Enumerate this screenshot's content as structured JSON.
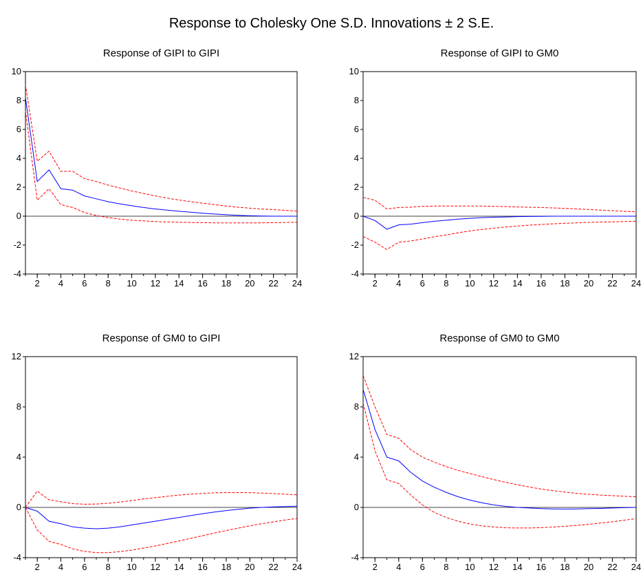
{
  "title": "Response to Cholesky One S.D. Innovations ± 2 S.E.",
  "colors": {
    "response": "#0000ff",
    "band": "#ff0000",
    "axis": "#000000",
    "zero_line": "#000000"
  },
  "chart_data": [
    {
      "type": "line",
      "title": "Response of GIPI to GIPI",
      "x": [
        1,
        2,
        3,
        4,
        5,
        6,
        7,
        8,
        9,
        10,
        11,
        12,
        13,
        14,
        15,
        16,
        17,
        18,
        19,
        20,
        21,
        22,
        23,
        24
      ],
      "xticks": [
        2,
        4,
        6,
        8,
        10,
        12,
        14,
        16,
        18,
        20,
        22,
        24
      ],
      "xlim": [
        1,
        24
      ],
      "yticks": [
        -4,
        -2,
        0,
        2,
        4,
        6,
        8,
        10
      ],
      "ylim": [
        -4,
        10
      ],
      "grid": false,
      "series": [
        {
          "role": "response",
          "values": [
            8.2,
            2.4,
            3.2,
            1.9,
            1.8,
            1.4,
            1.2,
            1.0,
            0.85,
            0.72,
            0.6,
            0.5,
            0.42,
            0.34,
            0.27,
            0.21,
            0.15,
            0.1,
            0.06,
            0.03,
            0.01,
            0.0,
            0.0,
            0.0
          ]
        },
        {
          "role": "upper",
          "values": [
            9.1,
            3.8,
            4.5,
            3.1,
            3.1,
            2.6,
            2.4,
            2.15,
            1.95,
            1.75,
            1.57,
            1.4,
            1.25,
            1.12,
            1.0,
            0.9,
            0.8,
            0.7,
            0.62,
            0.55,
            0.5,
            0.45,
            0.4,
            0.35
          ]
        },
        {
          "role": "lower",
          "values": [
            7.3,
            1.1,
            1.9,
            0.8,
            0.6,
            0.25,
            0.05,
            -0.1,
            -0.2,
            -0.28,
            -0.33,
            -0.37,
            -0.4,
            -0.42,
            -0.44,
            -0.45,
            -0.46,
            -0.46,
            -0.46,
            -0.46,
            -0.46,
            -0.45,
            -0.44,
            -0.42
          ]
        }
      ]
    },
    {
      "type": "line",
      "title": "Response of GIPI to GM0",
      "x": [
        1,
        2,
        3,
        4,
        5,
        6,
        7,
        8,
        9,
        10,
        11,
        12,
        13,
        14,
        15,
        16,
        17,
        18,
        19,
        20,
        21,
        22,
        23,
        24
      ],
      "xticks": [
        2,
        4,
        6,
        8,
        10,
        12,
        14,
        16,
        18,
        20,
        22,
        24
      ],
      "xlim": [
        1,
        24
      ],
      "yticks": [
        -4,
        -2,
        0,
        2,
        4,
        6,
        8,
        10
      ],
      "ylim": [
        -4,
        10
      ],
      "grid": false,
      "series": [
        {
          "role": "response",
          "values": [
            0.0,
            -0.3,
            -0.9,
            -0.6,
            -0.55,
            -0.45,
            -0.35,
            -0.28,
            -0.2,
            -0.15,
            -0.1,
            -0.07,
            -0.05,
            -0.03,
            -0.02,
            -0.01,
            0.0,
            0.0,
            0.0,
            0.0,
            0.0,
            0.0,
            0.0,
            0.0
          ]
        },
        {
          "role": "upper",
          "values": [
            1.3,
            1.1,
            0.5,
            0.6,
            0.62,
            0.68,
            0.7,
            0.7,
            0.7,
            0.7,
            0.7,
            0.68,
            0.66,
            0.64,
            0.62,
            0.6,
            0.57,
            0.54,
            0.5,
            0.46,
            0.42,
            0.38,
            0.34,
            0.3
          ]
        },
        {
          "role": "lower",
          "values": [
            -1.4,
            -1.8,
            -2.3,
            -1.8,
            -1.72,
            -1.58,
            -1.42,
            -1.3,
            -1.15,
            -1.02,
            -0.92,
            -0.83,
            -0.75,
            -0.68,
            -0.62,
            -0.57,
            -0.53,
            -0.49,
            -0.46,
            -0.43,
            -0.41,
            -0.39,
            -0.37,
            -0.35
          ]
        }
      ]
    },
    {
      "type": "line",
      "title": "Response of GM0 to GIPI",
      "x": [
        1,
        2,
        3,
        4,
        5,
        6,
        7,
        8,
        9,
        10,
        11,
        12,
        13,
        14,
        15,
        16,
        17,
        18,
        19,
        20,
        21,
        22,
        23,
        24
      ],
      "xticks": [
        2,
        4,
        6,
        8,
        10,
        12,
        14,
        16,
        18,
        20,
        22,
        24
      ],
      "xlim": [
        1,
        24
      ],
      "yticks": [
        -4,
        0,
        4,
        8,
        12
      ],
      "ylim": [
        -4,
        12
      ],
      "grid": false,
      "series": [
        {
          "role": "response",
          "values": [
            0.0,
            -0.3,
            -1.1,
            -1.3,
            -1.55,
            -1.65,
            -1.7,
            -1.65,
            -1.55,
            -1.4,
            -1.25,
            -1.1,
            -0.95,
            -0.8,
            -0.65,
            -0.5,
            -0.37,
            -0.25,
            -0.15,
            -0.06,
            0.0,
            0.04,
            0.07,
            0.1
          ]
        },
        {
          "role": "upper",
          "values": [
            0.0,
            1.3,
            0.6,
            0.45,
            0.3,
            0.25,
            0.27,
            0.33,
            0.43,
            0.55,
            0.67,
            0.78,
            0.88,
            0.98,
            1.05,
            1.12,
            1.16,
            1.18,
            1.18,
            1.17,
            1.14,
            1.1,
            1.05,
            1.0
          ]
        },
        {
          "role": "lower",
          "values": [
            0.0,
            -1.8,
            -2.7,
            -2.95,
            -3.3,
            -3.5,
            -3.6,
            -3.6,
            -3.52,
            -3.4,
            -3.24,
            -3.07,
            -2.87,
            -2.67,
            -2.46,
            -2.25,
            -2.04,
            -1.84,
            -1.65,
            -1.47,
            -1.3,
            -1.15,
            -1.0,
            -0.88
          ]
        }
      ]
    },
    {
      "type": "line",
      "title": "Response of GM0 to GM0",
      "x": [
        1,
        2,
        3,
        4,
        5,
        6,
        7,
        8,
        9,
        10,
        11,
        12,
        13,
        14,
        15,
        16,
        17,
        18,
        19,
        20,
        21,
        22,
        23,
        24
      ],
      "xticks": [
        2,
        4,
        6,
        8,
        10,
        12,
        14,
        16,
        18,
        20,
        22,
        24
      ],
      "xlim": [
        1,
        24
      ],
      "yticks": [
        -4,
        0,
        4,
        8,
        12
      ],
      "ylim": [
        -4,
        12
      ],
      "grid": false,
      "series": [
        {
          "role": "response",
          "values": [
            9.4,
            6.2,
            4.0,
            3.7,
            2.8,
            2.1,
            1.6,
            1.2,
            0.85,
            0.58,
            0.37,
            0.2,
            0.08,
            0.0,
            -0.05,
            -0.1,
            -0.12,
            -0.13,
            -0.12,
            -0.1,
            -0.08,
            -0.05,
            -0.02,
            0.0
          ]
        },
        {
          "role": "upper",
          "values": [
            10.5,
            8.0,
            5.8,
            5.5,
            4.6,
            4.0,
            3.6,
            3.25,
            2.95,
            2.7,
            2.45,
            2.22,
            2.0,
            1.8,
            1.62,
            1.46,
            1.33,
            1.22,
            1.12,
            1.04,
            0.98,
            0.93,
            0.89,
            0.85
          ]
        },
        {
          "role": "lower",
          "values": [
            8.3,
            4.5,
            2.2,
            1.9,
            1.0,
            0.2,
            -0.4,
            -0.8,
            -1.1,
            -1.32,
            -1.47,
            -1.56,
            -1.62,
            -1.64,
            -1.64,
            -1.61,
            -1.56,
            -1.5,
            -1.43,
            -1.35,
            -1.25,
            -1.14,
            -1.02,
            -0.9
          ]
        }
      ]
    }
  ]
}
